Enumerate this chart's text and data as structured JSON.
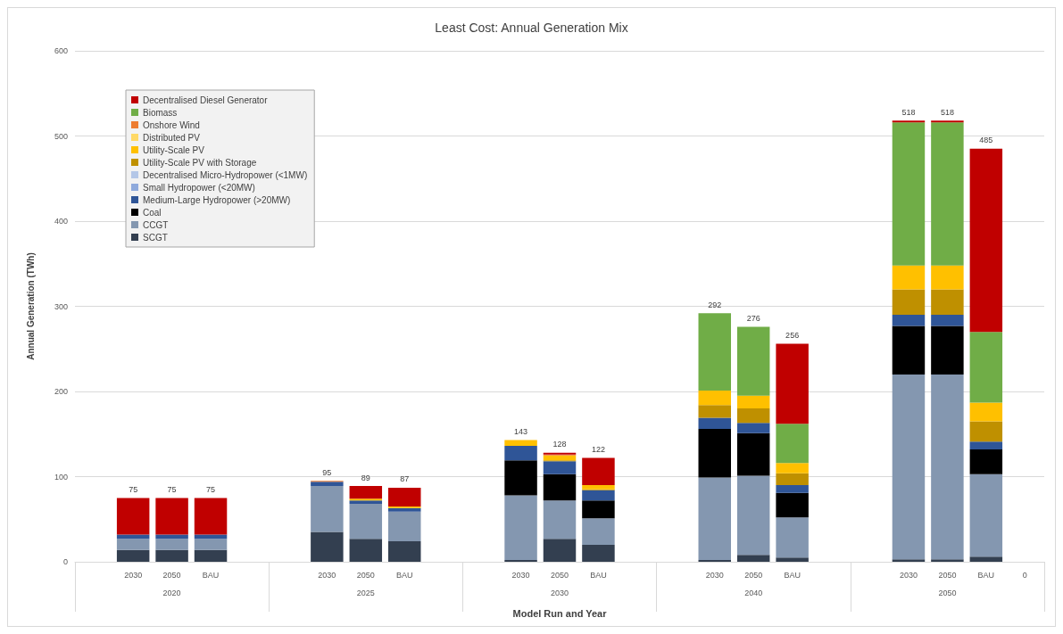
{
  "chart_data": {
    "type": "bar",
    "stacked": true,
    "title": "Least Cost: Annual Generation Mix",
    "xlabel": "Model Run and Year",
    "ylabel": "Annual Generation (TWh)",
    "categories": [
      null,
      "2030",
      "2050",
      "BAU",
      null,
      null,
      "2030",
      "2050",
      "BAU",
      null,
      null,
      "2030",
      "2050",
      "BAU",
      null,
      null,
      "2030",
      "2050",
      "BAU",
      null,
      null,
      "2030",
      "2050",
      "BAU",
      "0"
    ],
    "annotations": [
      "2020",
      "2025",
      "2030",
      "2040",
      "2050"
    ],
    "series": [
      {
        "name": "SCGT",
        "color": "#333f50",
        "values": [
          null,
          14,
          14,
          14,
          null,
          null,
          35,
          27,
          24,
          null,
          null,
          2,
          27,
          20,
          null,
          null,
          2,
          8,
          5,
          null,
          null,
          3,
          3,
          6,
          null
        ]
      },
      {
        "name": "CCGT",
        "color": "#8497b0",
        "values": [
          null,
          13,
          13,
          13,
          null,
          null,
          54,
          41,
          35,
          null,
          null,
          76,
          45,
          31,
          null,
          null,
          97,
          93,
          47,
          null,
          null,
          217,
          217,
          97,
          null
        ]
      },
      {
        "name": "Coal",
        "color": "#000000",
        "values": [
          null,
          0,
          0,
          0,
          null,
          null,
          0,
          0,
          0,
          null,
          null,
          41,
          31,
          21,
          null,
          null,
          57,
          50,
          29,
          null,
          null,
          57,
          57,
          29,
          null
        ]
      },
      {
        "name": "Medium-Large Hydropower (>20MW)",
        "color": "#2f5597",
        "values": [
          null,
          5,
          5,
          5,
          null,
          null,
          5,
          4,
          4,
          null,
          null,
          17,
          15,
          12,
          null,
          null,
          13,
          12,
          9,
          null,
          null,
          13,
          13,
          9,
          null
        ]
      },
      {
        "name": "Small Hydropower (<20MW)",
        "color": "#8faadc",
        "values": [
          null,
          0,
          0,
          0,
          null,
          null,
          0,
          0,
          0,
          null,
          null,
          0,
          0,
          0,
          null,
          null,
          0,
          0,
          0,
          null,
          null,
          0,
          0,
          0,
          null
        ]
      },
      {
        "name": "Decentralised Micro-Hydropower (<1MW)",
        "color": "#b4c7e7",
        "values": [
          null,
          0,
          0,
          0,
          null,
          null,
          0,
          0,
          0,
          null,
          null,
          0,
          0,
          0,
          null,
          null,
          0,
          0,
          0,
          null,
          null,
          0,
          0,
          0,
          null
        ]
      },
      {
        "name": "Utility-Scale PV with Storage",
        "color": "#bf9000",
        "values": [
          null,
          0,
          0,
          0,
          null,
          null,
          0,
          0,
          0,
          null,
          null,
          0,
          1,
          1,
          null,
          null,
          15,
          17,
          14,
          null,
          null,
          30,
          30,
          24,
          null
        ]
      },
      {
        "name": "Utility-Scale PV",
        "color": "#ffc000",
        "values": [
          null,
          0,
          0,
          0,
          null,
          null,
          0,
          2,
          2,
          null,
          null,
          7,
          6,
          5,
          null,
          null,
          17,
          15,
          12,
          null,
          null,
          28,
          28,
          22,
          null
        ]
      },
      {
        "name": "Distributed PV",
        "color": "#ffd966",
        "values": [
          null,
          0,
          0,
          0,
          null,
          null,
          0,
          0,
          0,
          null,
          null,
          0,
          0,
          0,
          null,
          null,
          0,
          0,
          0,
          null,
          null,
          0,
          0,
          0,
          null
        ]
      },
      {
        "name": "Onshore Wind",
        "color": "#ed7d31",
        "values": [
          null,
          0,
          0,
          0,
          null,
          null,
          1,
          0,
          0,
          null,
          null,
          0,
          1,
          0,
          null,
          null,
          0,
          0,
          0,
          null,
          null,
          0,
          0,
          0,
          null
        ]
      },
      {
        "name": "Biomass",
        "color": "#70ad47",
        "values": [
          null,
          0,
          0,
          0,
          null,
          null,
          0,
          0,
          0,
          null,
          null,
          0,
          0,
          0,
          null,
          null,
          91,
          81,
          46,
          null,
          null,
          168,
          168,
          83,
          null
        ]
      },
      {
        "name": "Decentralised Diesel Generator",
        "color": "#c00000",
        "values": [
          null,
          43,
          43,
          43,
          null,
          null,
          0,
          15,
          22,
          null,
          null,
          0,
          2,
          32,
          null,
          null,
          0,
          0,
          94,
          null,
          null,
          2,
          2,
          215,
          null
        ]
      }
    ],
    "totals": [
      null,
      "75",
      "75",
      "75",
      null,
      null,
      "95",
      "89",
      "87",
      null,
      null,
      "143",
      "128",
      "122",
      null,
      null,
      "292",
      "276",
      "256",
      null,
      null,
      "518",
      "518",
      "485",
      null
    ],
    "ylim": [
      0,
      600
    ],
    "yticks": [
      0,
      100,
      200,
      300,
      400,
      500,
      600
    ],
    "grid": "y",
    "legend": "top left"
  }
}
